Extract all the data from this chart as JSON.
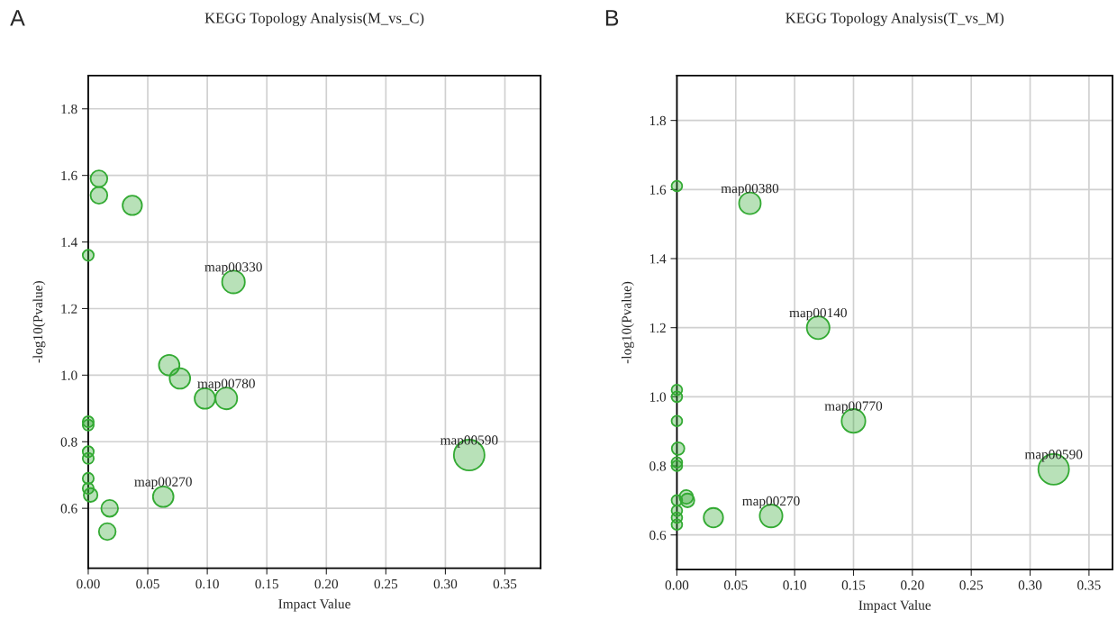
{
  "chart_data": [
    {
      "type": "bubble",
      "title": "KEGG Topology Analysis(M_vs_C)",
      "xlabel": "Impact Value",
      "ylabel": "-log10(Pvalue)",
      "x": [
        0.009,
        0.009,
        0.037,
        0,
        0.122,
        0.068,
        0.077,
        0.098,
        0.116,
        0,
        0,
        0,
        0,
        0,
        0,
        0.002,
        0.018,
        0.016,
        0.063,
        0.32
      ],
      "values": [
        1.59,
        1.54,
        1.51,
        1.36,
        1.28,
        1.03,
        0.99,
        0.93,
        0.93,
        0.86,
        0.85,
        0.77,
        0.75,
        0.69,
        0.66,
        0.64,
        0.6,
        0.53,
        0.635,
        0.76
      ],
      "sizes": [
        0.3,
        0.3,
        0.4,
        0.13,
        0.55,
        0.45,
        0.45,
        0.45,
        0.5,
        0.13,
        0.13,
        0.13,
        0.13,
        0.13,
        0.13,
        0.2,
        0.3,
        0.3,
        0.45,
        1
      ],
      "color": "#33aa33",
      "xlim": [
        0,
        0.38
      ],
      "ylim": [
        0.42,
        1.9
      ],
      "xticks": [
        {
          "value": 0,
          "label": "0.00"
        },
        0.05,
        {
          "value": 0.1,
          "label": "0.10"
        },
        0.15,
        {
          "value": 0.2,
          "label": "0.20"
        },
        0.25,
        {
          "value": 0.3,
          "label": "0.30"
        },
        0.35
      ],
      "yticks": [
        0.6,
        0.8,
        {
          "value": 1.0,
          "label": "1.0"
        },
        1.2,
        1.4,
        1.6,
        1.8
      ],
      "grid": true,
      "annotations": [
        "A",
        {
          "text": "map00330",
          "x": 0.122,
          "y": 1.28
        },
        {
          "text": "map00780",
          "x": 0.116,
          "y": 0.93
        },
        {
          "text": "map00270",
          "x": 0.063,
          "y": 0.635
        },
        {
          "text": "map00590",
          "x": 0.32,
          "y": 0.76
        }
      ]
    },
    {
      "type": "bubble",
      "title": "KEGG Topology Analysis(T_vs_M)",
      "xlabel": "Impact Value",
      "ylabel": "-log10(Pvalue)",
      "x": [
        0,
        0.062,
        0.12,
        0.15,
        0.32,
        0,
        0,
        0,
        0.001,
        0,
        0,
        0,
        0,
        0,
        0,
        0.008,
        0.009,
        0.031,
        0.08
      ],
      "values": [
        1.61,
        1.56,
        1.2,
        0.93,
        0.79,
        1.02,
        1.0,
        0.93,
        0.85,
        0.81,
        0.8,
        0.7,
        0.67,
        0.65,
        0.63,
        0.71,
        0.7,
        0.65,
        0.655
      ],
      "sizes": [
        0.12,
        0.5,
        0.55,
        0.6,
        1,
        0.12,
        0.12,
        0.12,
        0.17,
        0.12,
        0.12,
        0.12,
        0.12,
        0.12,
        0.12,
        0.2,
        0.2,
        0.4,
        0.55
      ],
      "color": "#33aa33",
      "xlim": [
        0,
        0.37
      ],
      "ylim": [
        0.5,
        1.93
      ],
      "xticks": [
        {
          "value": 0,
          "label": "0.00"
        },
        0.05,
        {
          "value": 0.1,
          "label": "0.10"
        },
        0.15,
        {
          "value": 0.2,
          "label": "0.20"
        },
        0.25,
        {
          "value": 0.3,
          "label": "0.30"
        },
        0.35
      ],
      "yticks": [
        0.6,
        0.8,
        {
          "value": 1.0,
          "label": "1.0"
        },
        1.2,
        1.4,
        1.6,
        1.8
      ],
      "grid": true,
      "annotations": [
        "B",
        {
          "text": "map00380",
          "x": 0.062,
          "y": 1.56
        },
        {
          "text": "map00140",
          "x": 0.12,
          "y": 1.2
        },
        {
          "text": "map00770",
          "x": 0.15,
          "y": 0.93
        },
        {
          "text": "map00590",
          "x": 0.32,
          "y": 0.79
        },
        {
          "text": "map00270",
          "x": 0.08,
          "y": 0.655
        }
      ]
    }
  ]
}
